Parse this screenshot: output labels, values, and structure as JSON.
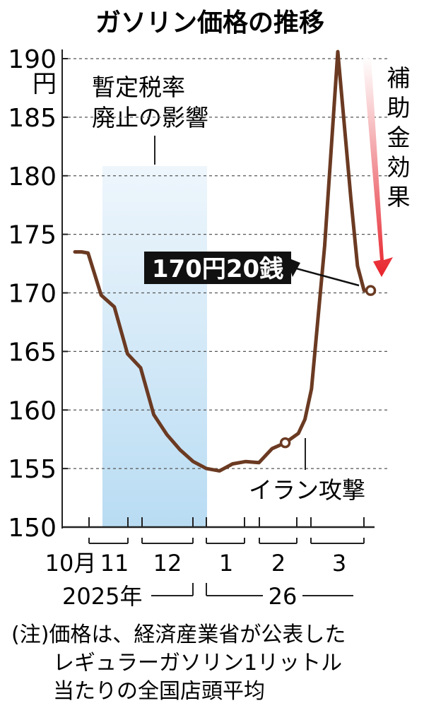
{
  "chart_data": {
    "type": "line",
    "title": "ガソリン価格の推移",
    "yunit": "円",
    "ylim": [
      150,
      190
    ],
    "yticks": [
      "150",
      "155",
      "160",
      "165",
      "170",
      "175",
      "180",
      "185",
      "190"
    ],
    "grid": "horizontal dashed",
    "x_month_labels": [
      "10月",
      "11",
      "12",
      "1",
      "2",
      "3"
    ],
    "year_labels": [
      "2025年",
      "26"
    ],
    "series": [
      {
        "color": "#6b3a22",
        "x": [
          0,
          0.5,
          1,
          2,
          3,
          4,
          5,
          6,
          7,
          8,
          9,
          10,
          11,
          12,
          13,
          14,
          15,
          16,
          17,
          17.5,
          18,
          19,
          20,
          21,
          21.5,
          22,
          22.5
        ],
        "values": [
          173.5,
          173.5,
          173.4,
          169.8,
          168.8,
          164.8,
          163.6,
          159.6,
          157.9,
          156.6,
          155.6,
          155.0,
          154.8,
          155.4,
          155.6,
          155.5,
          156.7,
          157.2,
          158.0,
          159.2,
          161.8,
          174.0,
          190.6,
          178.0,
          172.3,
          170.2,
          170.2
        ]
      }
    ],
    "annotations": {
      "shaded_region": "暫定税率廃止の影響",
      "shaded_line1": "暫定税率",
      "shaded_line2": "廃止の影響",
      "event": "イラン攻撃",
      "arrow_label": "補助金効果",
      "callout": "170円20銭"
    },
    "note_line1": "(注)価格は、経済産業省が公表した",
    "note_line2": "レギュラーガソリン1リットル",
    "note_line3": "当たりの全国店頭平均",
    "colors": {
      "line": "#6b3a22",
      "shade": "#cfe6f7",
      "arrow": "#e8232b",
      "callout_bg": "#111111"
    }
  }
}
